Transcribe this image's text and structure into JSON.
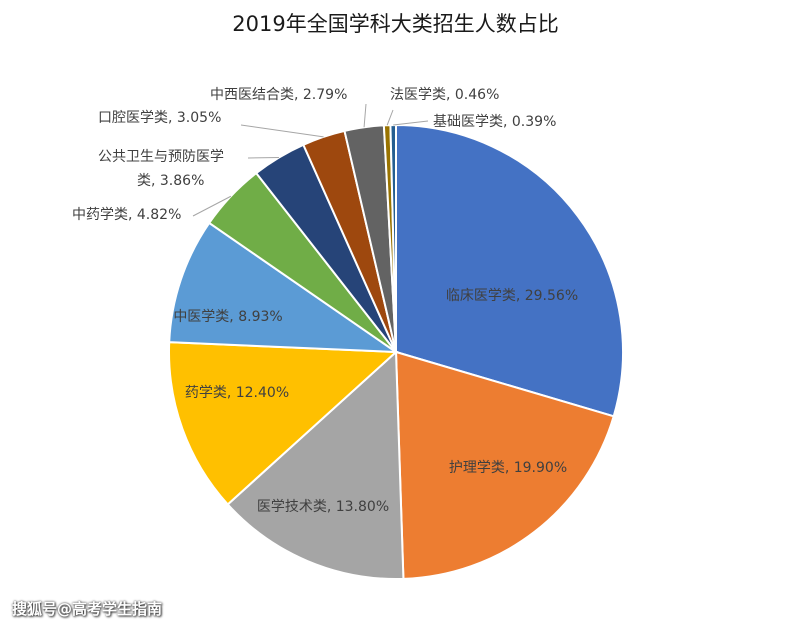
{
  "chart_data": {
    "type": "pie",
    "title": "2019年全国学科大类招生人数占比",
    "start_angle_deg": 0,
    "direction": "clockwise",
    "slices": [
      {
        "name": "临床医学类",
        "value": 29.56,
        "label": "临床医学类, 29.56%",
        "color": "#4472C4"
      },
      {
        "name": "护理学类",
        "value": 19.9,
        "label": "护理学类, 19.90%",
        "color": "#ED7D31"
      },
      {
        "name": "医学技术类",
        "value": 13.8,
        "label": "医学技术类, 13.80%",
        "color": "#A5A5A5"
      },
      {
        "name": "药学类",
        "value": 12.4,
        "label": "药学类, 12.40%",
        "color": "#FFC000"
      },
      {
        "name": "中医学类",
        "value": 8.93,
        "label": "中医学类, 8.93%",
        "color": "#5B9BD5"
      },
      {
        "name": "中药学类",
        "value": 4.82,
        "label": "中药学类, 4.82%",
        "color": "#70AD47"
      },
      {
        "name": "公共卫生与预防医学类",
        "value": 3.86,
        "label_lines": [
          "公共卫生与预防医学",
          "类, 3.86%"
        ],
        "color": "#264478"
      },
      {
        "name": "口腔医学类",
        "value": 3.05,
        "label": "口腔医学类, 3.05%",
        "color": "#9E480E"
      },
      {
        "name": "中西医结合类",
        "value": 2.79,
        "label": "中西医结合类, 2.79%",
        "color": "#636363"
      },
      {
        "name": "法医学类",
        "value": 0.46,
        "label": "法医学类, 0.46%",
        "color": "#997300"
      },
      {
        "name": "基础医学类",
        "value": 0.39,
        "label": "基础医学类, 0.39%",
        "color": "#255E91"
      }
    ]
  },
  "watermark": "搜狐号@高考学生指南"
}
